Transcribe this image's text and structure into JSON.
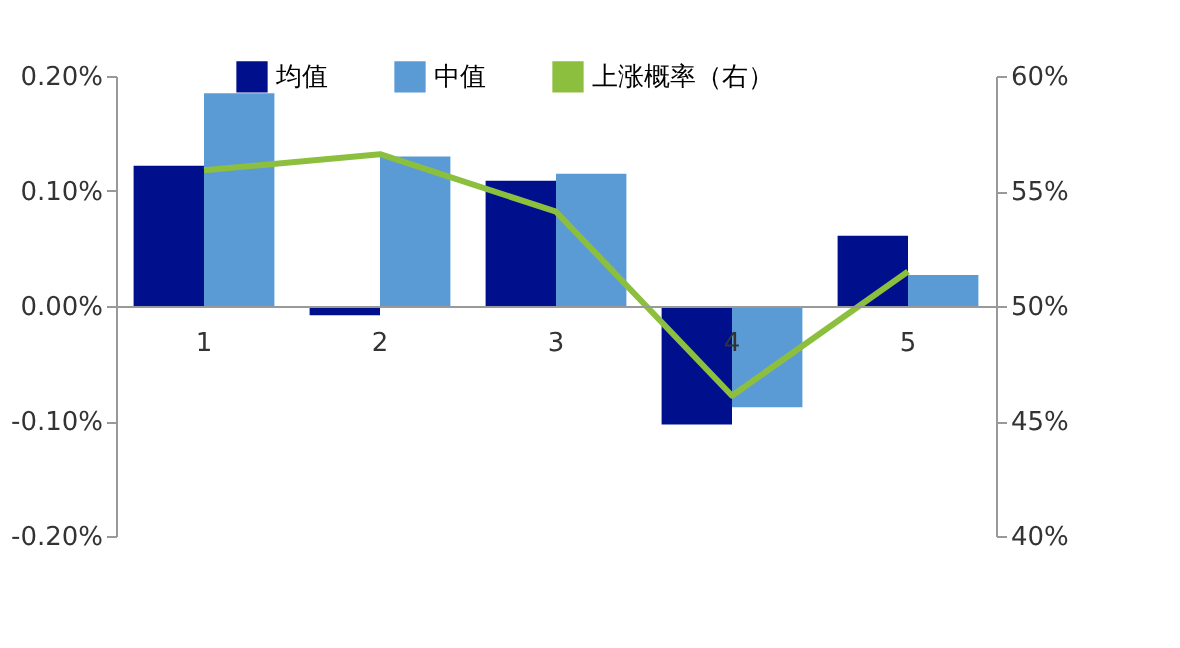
{
  "chart_data": {
    "type": "bar",
    "categories": [
      "1",
      "2",
      "3",
      "4",
      "5"
    ],
    "series": [
      {
        "name": "均值",
        "color": "#000f8c",
        "values": [
          0.122,
          -0.008,
          0.109,
          -0.103,
          0.061
        ]
      },
      {
        "name": "中值",
        "color": "#5b9bd5",
        "values": [
          0.185,
          0.13,
          0.115,
          -0.088,
          0.027
        ]
      },
      {
        "name": "上涨概率（右）",
        "type": "line",
        "axis": "y2",
        "color": "#8dbf3f",
        "values": [
          55.9,
          56.6,
          54.1,
          46.1,
          51.5
        ]
      }
    ],
    "ylim": [
      -0.2,
      0.2
    ],
    "yticks": [
      {
        "value": -0.2,
        "label": "-0.20%"
      },
      {
        "value": -0.1,
        "label": "-0.10%"
      },
      {
        "value": 0,
        "label": "0.00%"
      },
      {
        "value": 0.1,
        "label": "0.10%"
      },
      {
        "value": 0.2,
        "label": "0.20%"
      }
    ],
    "y2lim": [
      40,
      60
    ],
    "y2ticks": [
      {
        "value": 40,
        "label": "40%"
      },
      {
        "value": 45,
        "label": "45%"
      },
      {
        "value": 50,
        "label": "50%"
      },
      {
        "value": 55,
        "label": "55%"
      },
      {
        "value": 60,
        "label": "60%"
      }
    ],
    "legend": "top",
    "grid": false
  }
}
